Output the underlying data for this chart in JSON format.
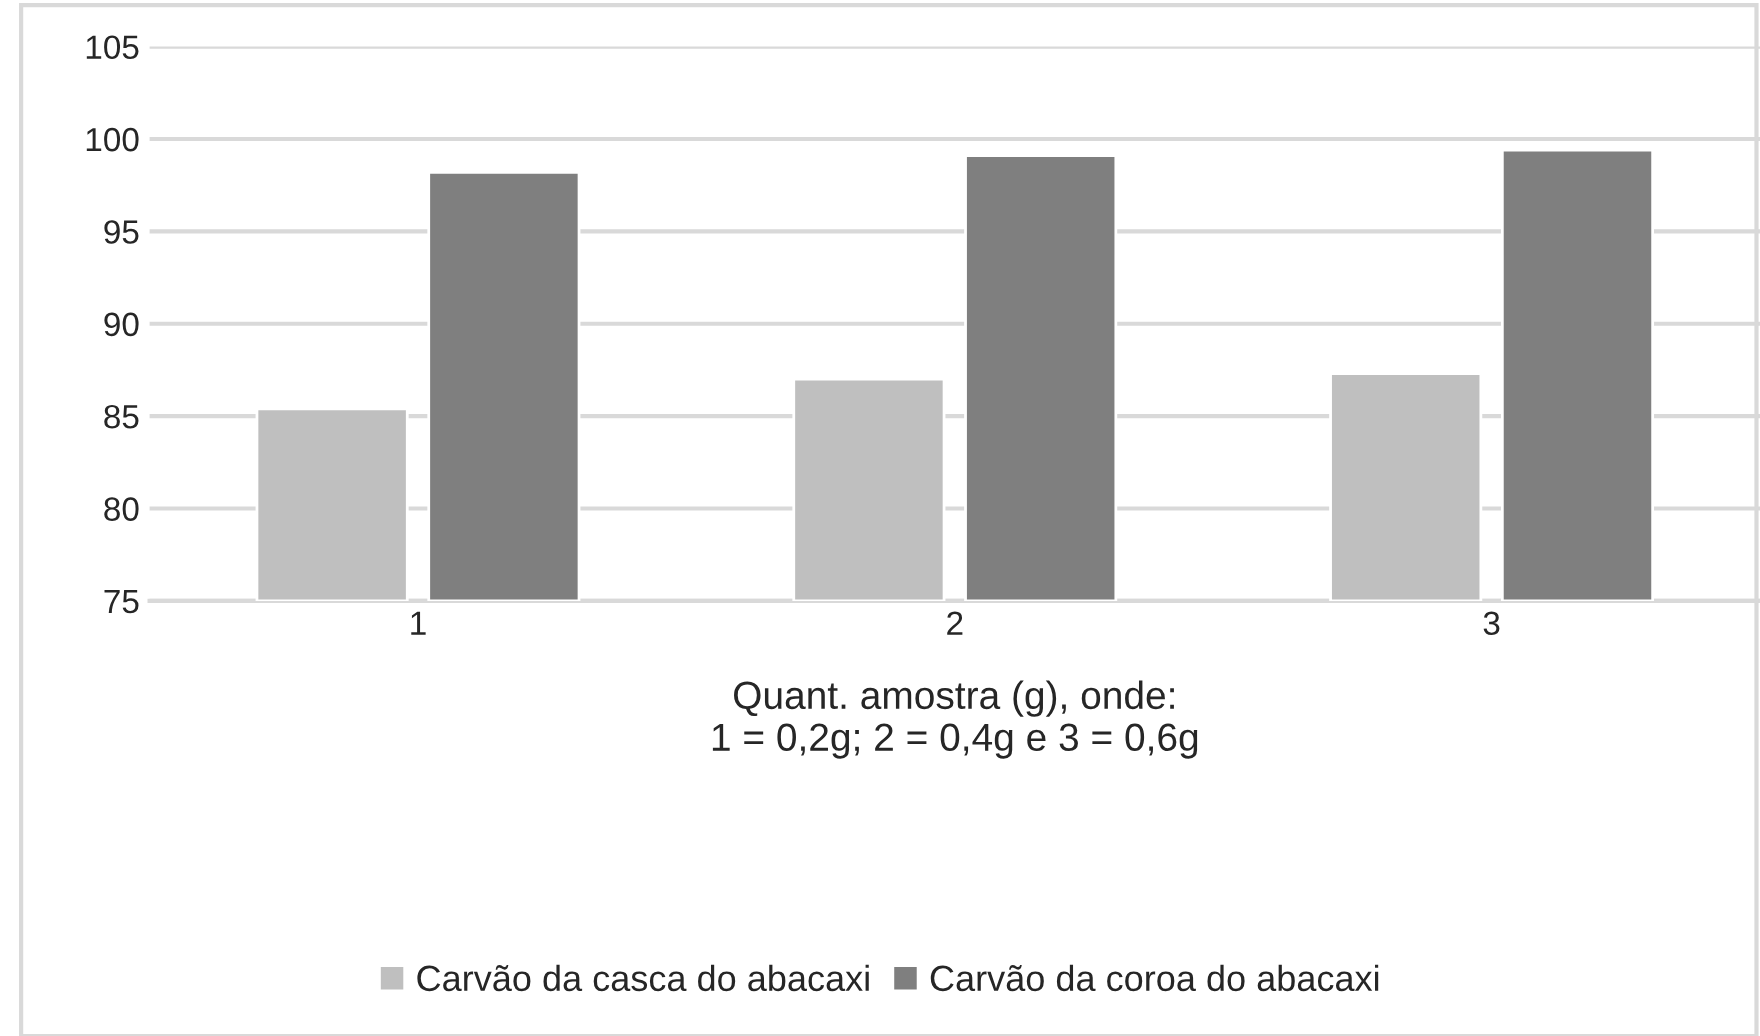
{
  "chart_data": {
    "type": "bar",
    "categories": [
      "1",
      "2",
      "3"
    ],
    "xlabel": "Quant. amostra (g), onde:\n1 = 0,2g; 2 = 0,4g e 3 = 0,6g",
    "series": [
      {
        "name": "Carvão da casca do abacaxi",
        "color": "#bfbfbf",
        "values": [
          85.4,
          87.0,
          87.3
        ]
      },
      {
        "name": "Carvão da coroa do abacaxi",
        "color": "#7f7f7f",
        "values": [
          98.2,
          99.1,
          99.4
        ]
      }
    ],
    "ylim": [
      75,
      105
    ],
    "yticks": [
      75,
      80,
      85,
      90,
      95,
      100,
      105
    ],
    "grid": "y",
    "legend": "bottom"
  }
}
